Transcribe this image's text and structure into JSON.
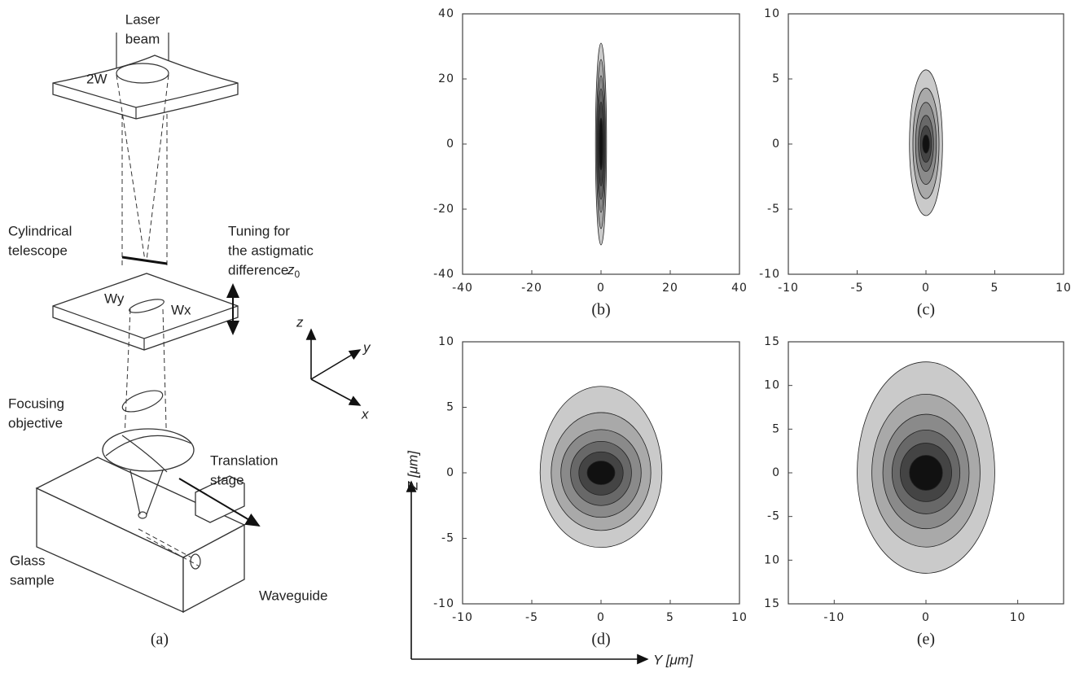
{
  "diagram": {
    "laser_beam": [
      "Laser",
      "beam"
    ],
    "telescope": [
      "Cylindrical",
      "telescope"
    ],
    "tuning": [
      "Tuning for",
      "the astigmatic",
      "difference"
    ],
    "tuning_symbol": {
      "symbol": "z",
      "subscript": "0"
    },
    "objective": [
      "Focusing",
      "objective"
    ],
    "stage": [
      "Translation",
      "stage"
    ],
    "sample": [
      "Glass",
      "sample"
    ],
    "waveguide": "Waveguide",
    "beam_width": "2W",
    "wy": "Wy",
    "wx": "Wx",
    "axis_z": "z",
    "axis_y": "y",
    "axis_x": "x",
    "label": "(a)"
  },
  "axis_titles": {
    "z": "Z [μm]",
    "y": "Y [μm]"
  },
  "contour_colors": [
    "#cacaca",
    "#a9a9a9",
    "#8a8a8a",
    "#686868",
    "#444444",
    "#111111"
  ],
  "chart_data": [
    {
      "type": "contour",
      "label": "(b)",
      "xlim": [
        -40,
        40
      ],
      "ylim": [
        -40,
        40
      ],
      "xticks": [
        -40,
        -20,
        0,
        20,
        40
      ],
      "yticks": [
        40,
        20,
        0,
        -20,
        -40
      ],
      "contours": [
        {
          "xr": 1.6,
          "top": 31,
          "bottom": -31
        },
        {
          "xr": 1.3,
          "top": 26,
          "bottom": -26
        },
        {
          "xr": 1.1,
          "top": 21,
          "bottom": -21
        },
        {
          "xr": 0.9,
          "top": 17,
          "bottom": -17
        },
        {
          "xr": 0.7,
          "top": 13,
          "bottom": -13
        },
        {
          "xr": 0.5,
          "top": 8,
          "bottom": -8
        }
      ]
    },
    {
      "type": "contour",
      "label": "(c)",
      "xlim": [
        -10,
        10
      ],
      "ylim": [
        -10,
        10
      ],
      "xticks": [
        -10,
        -5,
        0,
        5,
        10
      ],
      "yticks": [
        10,
        5,
        0,
        -5,
        -10
      ],
      "contours": [
        {
          "xr": 1.2,
          "top": 5.7,
          "bottom": -5.5
        },
        {
          "xr": 0.95,
          "top": 4.3,
          "bottom": -4.2
        },
        {
          "xr": 0.75,
          "top": 3.2,
          "bottom": -3.1
        },
        {
          "xr": 0.55,
          "top": 2.2,
          "bottom": -2.1
        },
        {
          "xr": 0.4,
          "top": 1.4,
          "bottom": -1.4
        },
        {
          "xr": 0.25,
          "top": 0.7,
          "bottom": -0.7
        }
      ]
    },
    {
      "type": "contour",
      "label": "(d)",
      "xlim": [
        -10,
        10
      ],
      "ylim": [
        -10,
        10
      ],
      "xticks": [
        -10,
        -5,
        0,
        5,
        10
      ],
      "yticks": [
        10,
        5,
        0,
        -5,
        -10
      ],
      "contours": [
        {
          "xr": 4.4,
          "top": 6.6,
          "bottom": -5.7
        },
        {
          "xr": 3.6,
          "top": 4.6,
          "bottom": -4.4
        },
        {
          "xr": 2.9,
          "top": 3.3,
          "bottom": -3.4
        },
        {
          "xr": 2.2,
          "top": 2.4,
          "bottom": -2.5
        },
        {
          "xr": 1.6,
          "top": 1.6,
          "bottom": -1.7
        },
        {
          "xr": 1.0,
          "top": 0.9,
          "bottom": -0.9
        }
      ]
    },
    {
      "type": "contour",
      "label": "(e)",
      "xlim": [
        -15,
        15
      ],
      "ylim": [
        -15,
        15
      ],
      "xticks": [
        -10,
        0,
        10
      ],
      "yticks": [
        15,
        10,
        5,
        0,
        -5,
        {
          "value": -10,
          "label": "10"
        },
        {
          "value": -15,
          "label": "15"
        }
      ],
      "contours": [
        {
          "xr": 7.5,
          "top": 12.7,
          "bottom": -11.5
        },
        {
          "xr": 5.9,
          "top": 9.0,
          "bottom": -8.5
        },
        {
          "xr": 4.7,
          "top": 6.7,
          "bottom": -6.4
        },
        {
          "xr": 3.7,
          "top": 4.9,
          "bottom": -4.7
        },
        {
          "xr": 2.8,
          "top": 3.4,
          "bottom": -3.3
        },
        {
          "xr": 1.8,
          "top": 2.0,
          "bottom": -2.0
        }
      ]
    }
  ]
}
